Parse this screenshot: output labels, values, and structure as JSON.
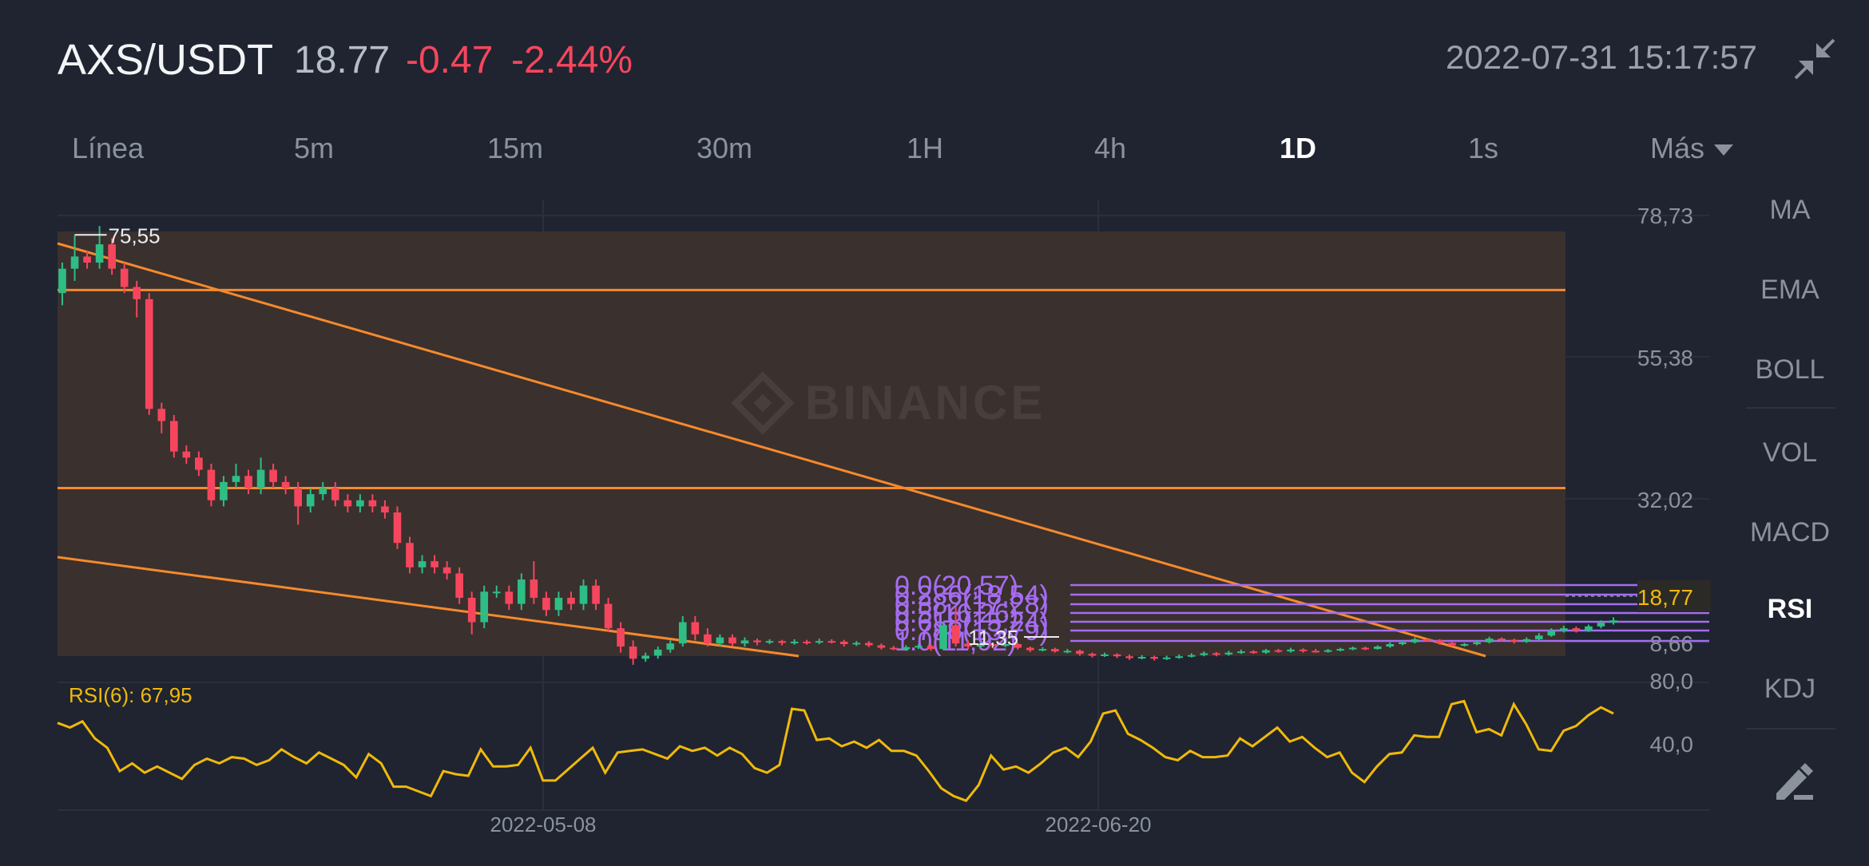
{
  "header": {
    "pair": "AXS/USDT",
    "price": "18.77",
    "change": "-0.47",
    "change_pct": "-2.44%",
    "timestamp": "2022-07-31 15:17:57",
    "collapse_icon": "collapse-icon"
  },
  "intervals": [
    "Línea",
    "5m",
    "15m",
    "30m",
    "1H",
    "4h",
    "1D",
    "1s",
    "Más"
  ],
  "active_interval": "1D",
  "indicators": [
    "MA",
    "EMA",
    "BOLL",
    "VOL",
    "MACD",
    "RSI",
    "KDJ"
  ],
  "active_indicator": "RSI",
  "draw_icon": "pencil-ruler-icon",
  "watermark": "BINANCE",
  "colors": {
    "up": "#2ebd85",
    "down": "#f6465d",
    "drawing": "#f58a2c",
    "fib": "#a66cf2",
    "rsi": "#f0b90b",
    "axis": "#8b929c"
  },
  "chart_data": {
    "type": "candlestick",
    "price_axis_labels": [
      "78,73",
      "55,38",
      "32,02",
      "8,66"
    ],
    "last_price_label": "18,77",
    "high_marker": "75,55",
    "low_marker": "11,35",
    "date_labels": [
      "2022-05-08",
      "2022-06-20"
    ],
    "fib_labels": [
      "0.0(20,57)",
      "0.236(18,54)",
      "0.382(17,28)",
      "0.5(16,26)",
      "0.618(15,24)",
      "0.786(13,79)",
      "1.0(11,92)"
    ],
    "horizontal_lines": [
      66.5,
      34.0
    ],
    "rsi": {
      "label": "RSI(6): 67,95",
      "axis_labels": [
        "80,0",
        "40,0"
      ],
      "values": [
        54,
        51,
        55,
        44,
        38,
        23,
        28,
        22,
        26,
        22,
        18,
        27,
        31,
        28,
        32,
        31,
        27,
        30,
        37,
        32,
        28,
        35,
        31,
        27,
        19,
        34,
        28,
        13,
        13,
        10,
        7,
        23,
        21,
        20,
        37,
        26,
        26,
        27,
        38,
        17,
        17,
        24,
        31,
        38,
        22,
        35,
        36,
        37,
        34,
        31,
        39,
        36,
        38,
        33,
        38,
        34,
        25,
        22,
        27,
        63,
        62,
        43,
        44,
        39,
        42,
        38,
        43,
        36,
        36,
        33,
        23,
        12,
        7,
        4,
        14,
        33,
        24,
        26,
        22,
        28,
        35,
        38,
        32,
        42,
        60,
        62,
        47,
        43,
        38,
        32,
        30,
        36,
        32,
        32,
        33,
        44,
        39,
        45,
        51,
        42,
        45,
        38,
        32,
        35,
        22,
        16,
        26,
        34,
        35,
        46,
        45,
        45,
        66,
        68,
        48,
        50,
        46,
        66,
        53,
        37,
        36,
        49,
        52,
        59,
        64,
        60
      ]
    },
    "candles": [
      [
        66.0,
        70.0,
        64.0,
        71.0
      ],
      [
        70.0,
        72.0,
        68.0,
        75.5
      ],
      [
        72.0,
        71.0,
        70.0,
        73.0
      ],
      [
        71.0,
        74.0,
        70.0,
        77.0
      ],
      [
        74.0,
        70.0,
        69.0,
        75.0
      ],
      [
        70.0,
        67.0,
        66.0,
        71.0
      ],
      [
        67.0,
        65.0,
        62.0,
        68.0
      ],
      [
        65.0,
        47.0,
        46.0,
        66.0
      ],
      [
        47.0,
        45.0,
        43.0,
        48.0
      ],
      [
        45.0,
        40.0,
        39.0,
        46.0
      ],
      [
        40.0,
        39.0,
        38.0,
        41.0
      ],
      [
        39.0,
        37.0,
        36.0,
        40.0
      ],
      [
        37.0,
        32.0,
        31.0,
        38.0
      ],
      [
        32.0,
        35.0,
        31.0,
        36.0
      ],
      [
        35.0,
        36.0,
        34.0,
        38.0
      ],
      [
        36.0,
        34.0,
        33.0,
        37.0
      ],
      [
        34.0,
        37.0,
        33.0,
        39.0
      ],
      [
        37.0,
        35.0,
        34.0,
        38.0
      ],
      [
        35.0,
        34.0,
        33.0,
        36.0
      ],
      [
        34.0,
        31.0,
        28.0,
        35.0
      ],
      [
        31.0,
        33.0,
        30.0,
        34.0
      ],
      [
        33.0,
        34.0,
        32.0,
        35.0
      ],
      [
        34.0,
        32.0,
        31.0,
        35.0
      ],
      [
        32.0,
        31.0,
        30.0,
        33.0
      ],
      [
        31.0,
        32.0,
        30.0,
        33.0
      ],
      [
        32.0,
        31.0,
        30.0,
        33.0
      ],
      [
        31.0,
        30.0,
        29.0,
        32.0
      ],
      [
        30.0,
        25.0,
        24.0,
        31.0
      ],
      [
        25.0,
        21.0,
        20.0,
        26.0
      ],
      [
        21.0,
        22.0,
        20.0,
        23.0
      ],
      [
        22.0,
        21.0,
        20.0,
        23.0
      ],
      [
        21.0,
        20.0,
        19.0,
        22.0
      ],
      [
        20.0,
        16.0,
        15.0,
        21.0
      ],
      [
        16.0,
        12.0,
        10.0,
        17.0
      ],
      [
        12.0,
        17.0,
        11.0,
        18.0
      ],
      [
        17.0,
        17.0,
        16.0,
        18.0
      ],
      [
        17.0,
        15.0,
        14.0,
        18.0
      ],
      [
        15.0,
        19.0,
        14.0,
        20.0
      ],
      [
        19.0,
        16.0,
        15.0,
        22.0
      ],
      [
        16.0,
        14.0,
        13.0,
        17.0
      ],
      [
        14.0,
        16.0,
        13.0,
        17.0
      ],
      [
        16.0,
        15.0,
        14.0,
        17.0
      ],
      [
        15.0,
        18.0,
        14.0,
        19.0
      ],
      [
        18.0,
        15.0,
        14.0,
        19.0
      ],
      [
        15.0,
        11.0,
        10.5,
        16.0
      ],
      [
        11.0,
        8.0,
        7.0,
        12.0
      ],
      [
        8.0,
        6.0,
        5.0,
        9.0
      ],
      [
        6.0,
        6.5,
        5.5,
        7.0
      ],
      [
        6.5,
        7.5,
        6.0,
        8.0
      ],
      [
        7.5,
        8.5,
        7.0,
        9.0
      ],
      [
        8.5,
        12.0,
        8.0,
        13.0
      ],
      [
        12.0,
        10.0,
        9.0,
        13.0
      ],
      [
        10.0,
        8.5,
        8.0,
        11.0
      ],
      [
        8.5,
        9.5,
        8.0,
        10.0
      ],
      [
        9.5,
        8.5,
        8.0,
        10.0
      ],
      [
        8.5,
        9.0,
        8.0,
        9.5
      ],
      [
        9.0,
        8.7,
        8.2,
        9.3
      ],
      [
        8.7,
        8.9,
        8.4,
        9.2
      ],
      [
        8.9,
        8.6,
        8.2,
        9.1
      ],
      [
        8.6,
        8.8,
        8.3,
        9.2
      ],
      [
        8.8,
        8.7,
        8.3,
        9.1
      ],
      [
        8.7,
        8.9,
        8.4,
        9.3
      ],
      [
        8.9,
        8.8,
        8.5,
        9.2
      ],
      [
        8.8,
        8.4,
        8.0,
        9.1
      ],
      [
        8.4,
        8.6,
        8.1,
        8.9
      ],
      [
        8.6,
        8.2,
        7.9,
        8.9
      ],
      [
        8.2,
        7.8,
        7.5,
        8.5
      ],
      [
        7.8,
        7.6,
        7.4,
        8.1
      ],
      [
        7.6,
        7.9,
        7.3,
        8.2
      ],
      [
        7.9,
        8.1,
        7.6,
        8.4
      ],
      [
        8.1,
        7.6,
        7.3,
        8.4
      ],
      [
        7.6,
        11.5,
        7.4,
        12.0
      ],
      [
        11.5,
        8.5,
        8.0,
        14.5
      ],
      [
        8.5,
        8.0,
        7.6,
        9.0
      ],
      [
        8.0,
        8.4,
        7.8,
        8.7
      ],
      [
        8.4,
        8.1,
        7.7,
        8.6
      ],
      [
        8.1,
        8.4,
        7.9,
        8.7
      ],
      [
        8.4,
        7.8,
        7.5,
        8.6
      ],
      [
        7.8,
        7.4,
        7.1,
        8.0
      ],
      [
        7.4,
        7.6,
        7.2,
        7.9
      ],
      [
        7.6,
        7.2,
        7.0,
        7.8
      ],
      [
        7.2,
        7.3,
        6.9,
        7.6
      ],
      [
        7.3,
        6.8,
        6.5,
        7.5
      ],
      [
        6.8,
        6.5,
        6.2,
        7.0
      ],
      [
        6.5,
        6.7,
        6.3,
        7.0
      ],
      [
        6.7,
        6.4,
        6.1,
        6.9
      ],
      [
        6.4,
        6.1,
        5.8,
        6.7
      ],
      [
        6.1,
        6.3,
        5.9,
        6.6
      ],
      [
        6.3,
        6.0,
        5.7,
        6.5
      ],
      [
        6.0,
        6.2,
        5.8,
        6.5
      ],
      [
        6.2,
        6.4,
        6.0,
        6.7
      ],
      [
        6.4,
        6.6,
        6.2,
        6.9
      ],
      [
        6.6,
        6.9,
        6.4,
        7.2
      ],
      [
        6.9,
        6.7,
        6.4,
        7.1
      ],
      [
        6.7,
        7.0,
        6.5,
        7.3
      ],
      [
        7.0,
        7.2,
        6.8,
        7.5
      ],
      [
        7.2,
        7.0,
        6.8,
        7.4
      ],
      [
        7.0,
        7.4,
        6.8,
        7.6
      ],
      [
        7.4,
        7.2,
        7.0,
        7.6
      ],
      [
        7.2,
        7.5,
        7.0,
        7.8
      ],
      [
        7.5,
        7.3,
        7.0,
        7.7
      ],
      [
        7.3,
        7.2,
        7.0,
        7.6
      ],
      [
        7.2,
        7.4,
        7.0,
        7.6
      ],
      [
        7.4,
        7.6,
        7.2,
        7.8
      ],
      [
        7.6,
        7.8,
        7.4,
        8.0
      ],
      [
        7.8,
        7.6,
        7.4,
        8.0
      ],
      [
        7.6,
        8.0,
        7.5,
        8.2
      ],
      [
        8.0,
        8.4,
        7.8,
        8.7
      ],
      [
        8.4,
        8.7,
        8.2,
        9.0
      ],
      [
        8.7,
        9.2,
        8.5,
        9.5
      ],
      [
        9.2,
        9.0,
        8.8,
        9.4
      ],
      [
        9.0,
        8.6,
        8.3,
        9.2
      ],
      [
        8.6,
        8.2,
        8.0,
        8.8
      ],
      [
        8.2,
        8.4,
        8.0,
        8.6
      ],
      [
        8.4,
        8.7,
        8.2,
        9.0
      ],
      [
        8.7,
        9.3,
        8.5,
        9.6
      ],
      [
        9.3,
        9.1,
        8.8,
        9.5
      ],
      [
        9.1,
        8.8,
        8.5,
        9.3
      ],
      [
        8.8,
        9.2,
        8.6,
        9.5
      ],
      [
        9.2,
        9.8,
        9.0,
        10.2
      ],
      [
        9.8,
        10.6,
        9.6,
        11.0
      ],
      [
        10.6,
        11.0,
        10.3,
        11.4
      ],
      [
        11.0,
        10.6,
        10.3,
        11.3
      ],
      [
        10.6,
        11.3,
        10.4,
        11.6
      ],
      [
        11.3,
        11.9,
        11.0,
        12.3
      ],
      [
        11.9,
        12.3,
        11.6,
        12.8
      ]
    ]
  }
}
